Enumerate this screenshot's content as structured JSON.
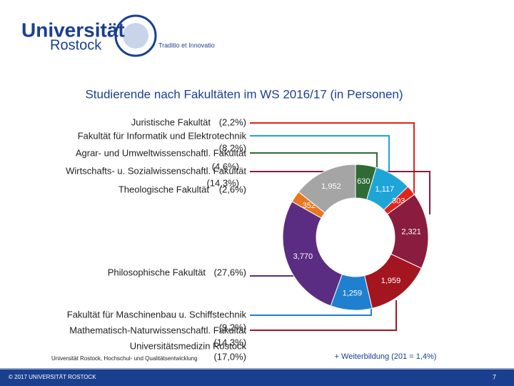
{
  "header": {
    "logo_top": "Universität",
    "logo_bottom": "Rostock",
    "motto": "Traditio et Innovatio"
  },
  "chart_data": {
    "type": "donut",
    "title": "Studierende nach Fakultäten im WS 2016/17 (in Personen)",
    "values": [
      630,
      1117,
      303,
      2321,
      1959,
      1259,
      3770,
      352,
      1952
    ],
    "value_labels": [
      "630",
      "1,117",
      "303",
      "2,321",
      "1,959",
      "1,259",
      "3,770",
      "352",
      "1,952"
    ],
    "colors": [
      "#2f6b35",
      "#1ea5d8",
      "#e2231a",
      "#8a1c40",
      "#a3151f",
      "#1f80d0",
      "#5a2d82",
      "#e8781f",
      "#a5a5a5"
    ]
  },
  "labels": [
    {
      "name": "Juristische Fakultät",
      "share": "(2,2%)"
    },
    {
      "name": "Fakultät für Informatik und Elektrotechnik",
      "share": "(8,2%)"
    },
    {
      "name": "Agrar- und Umweltwissenschaftl. Fakultät",
      "share": "(4,6%)"
    },
    {
      "name": "Wirtschafts- u. Sozialwissenschaftl. Fakultät",
      "share": "(14,3%)"
    },
    {
      "name": "Theologische Fakultät",
      "share": "(2,6%)"
    },
    {
      "name": "Philosophische Fakultät",
      "share": "(27,6%)"
    },
    {
      "name": "Fakultät für Maschinenbau u. Schiffstechnik",
      "share": "(9,2%)"
    },
    {
      "name": "Mathematisch-Naturwissenschaftl. Fakultät",
      "share": "(14,3%)"
    },
    {
      "name": "Universitätsmedizin Rostock",
      "share": "(17,0%)"
    }
  ],
  "note": "+ Weiterbildung (201 = 1,4%)",
  "footer": {
    "source": "Universität Rostock, Hochschul- und Qualitätsentwicklung",
    "copyright": "© 2017 UNIVERSITÄT ROSTOCK",
    "page": "7"
  }
}
